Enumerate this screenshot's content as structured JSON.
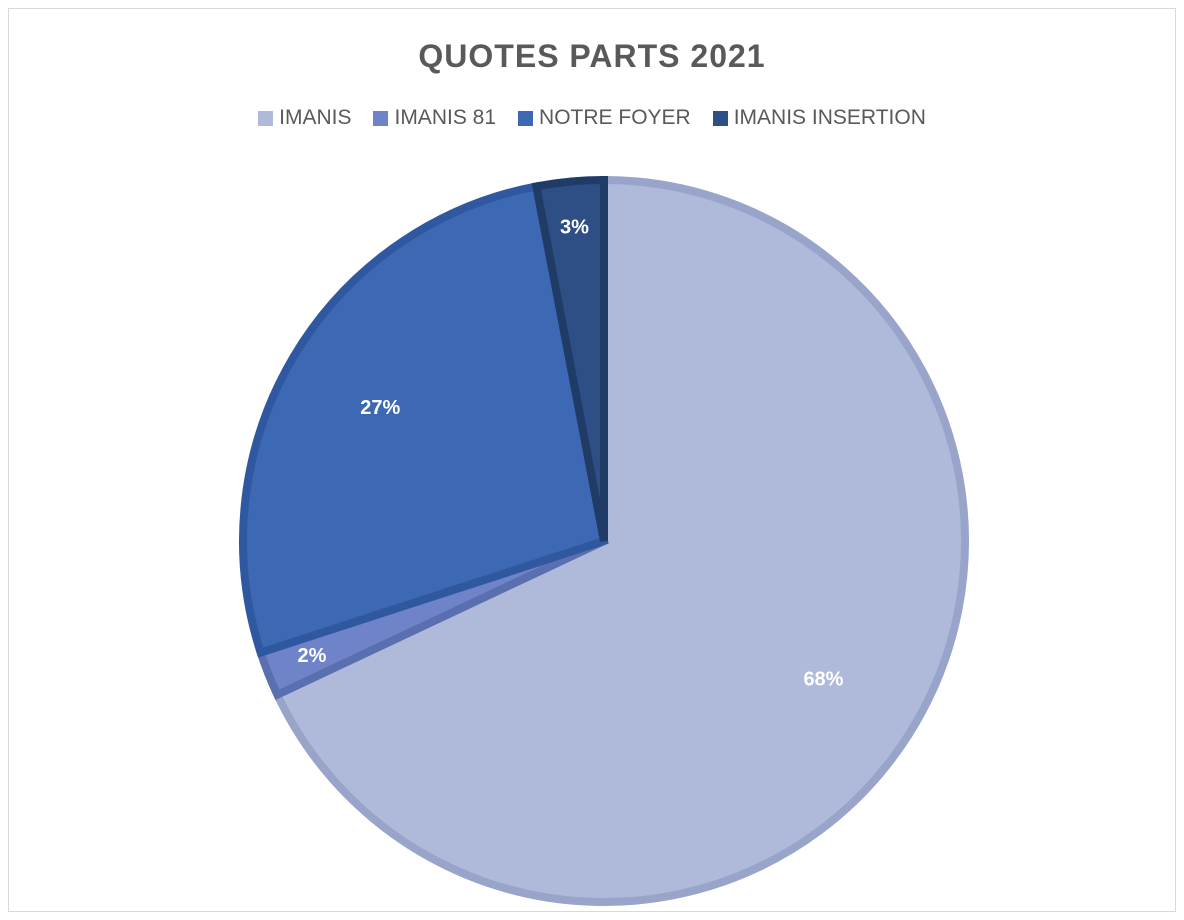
{
  "chart_data": {
    "type": "pie",
    "title": "QUOTES PARTS 2021",
    "legend_position": "top",
    "categories": [
      "IMANIS",
      "IMANIS 81",
      "NOTRE FOYER",
      "IMANIS INSERTION"
    ],
    "values": [
      68,
      2,
      27,
      3
    ],
    "value_labels": [
      "68%",
      "2%",
      "27%",
      "3%"
    ],
    "colors": [
      "#afbadb",
      "#6f84c8",
      "#3d68b4",
      "#2e4f86"
    ],
    "border_colors": [
      "#98a4c9",
      "#5a6fb0",
      "#2f58a0",
      "#203b66"
    ],
    "start_angle_deg": 0,
    "direction": "clockwise"
  }
}
